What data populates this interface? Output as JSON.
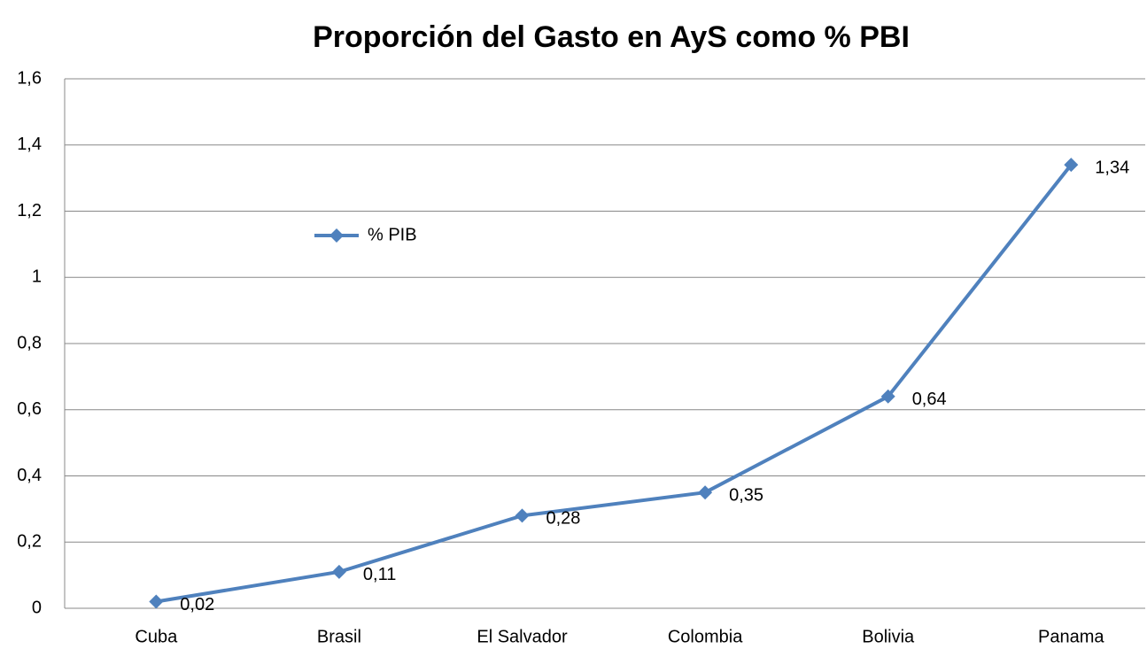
{
  "chart_data": {
    "type": "line",
    "title": "Proporción del Gasto en AyS como % PBI",
    "categories": [
      "Cuba",
      "Brasil",
      "El Salvador",
      "Colombia",
      "Bolivia",
      "Panama"
    ],
    "series": [
      {
        "name": "% PIB",
        "color": "#4f81bd",
        "values": [
          0.02,
          0.11,
          0.28,
          0.35,
          0.64,
          1.34
        ],
        "value_labels": [
          "0,02",
          "0,11",
          "0,28",
          "0,35",
          "0,64",
          "1,34"
        ]
      }
    ],
    "ylim": [
      0,
      1.6
    ],
    "yticks": [
      0,
      {
        "value": 0.2,
        "label": "0,2"
      },
      {
        "value": 0.4,
        "label": "0,4"
      },
      {
        "value": 0.6,
        "label": "0,6"
      },
      {
        "value": 0.8,
        "label": "0,8"
      },
      1,
      {
        "value": 1.2,
        "label": "1,2"
      },
      {
        "value": 1.4,
        "label": "1,4"
      },
      {
        "value": 1.6,
        "label": "1,6"
      }
    ],
    "grid": true,
    "legend": "upper left"
  }
}
